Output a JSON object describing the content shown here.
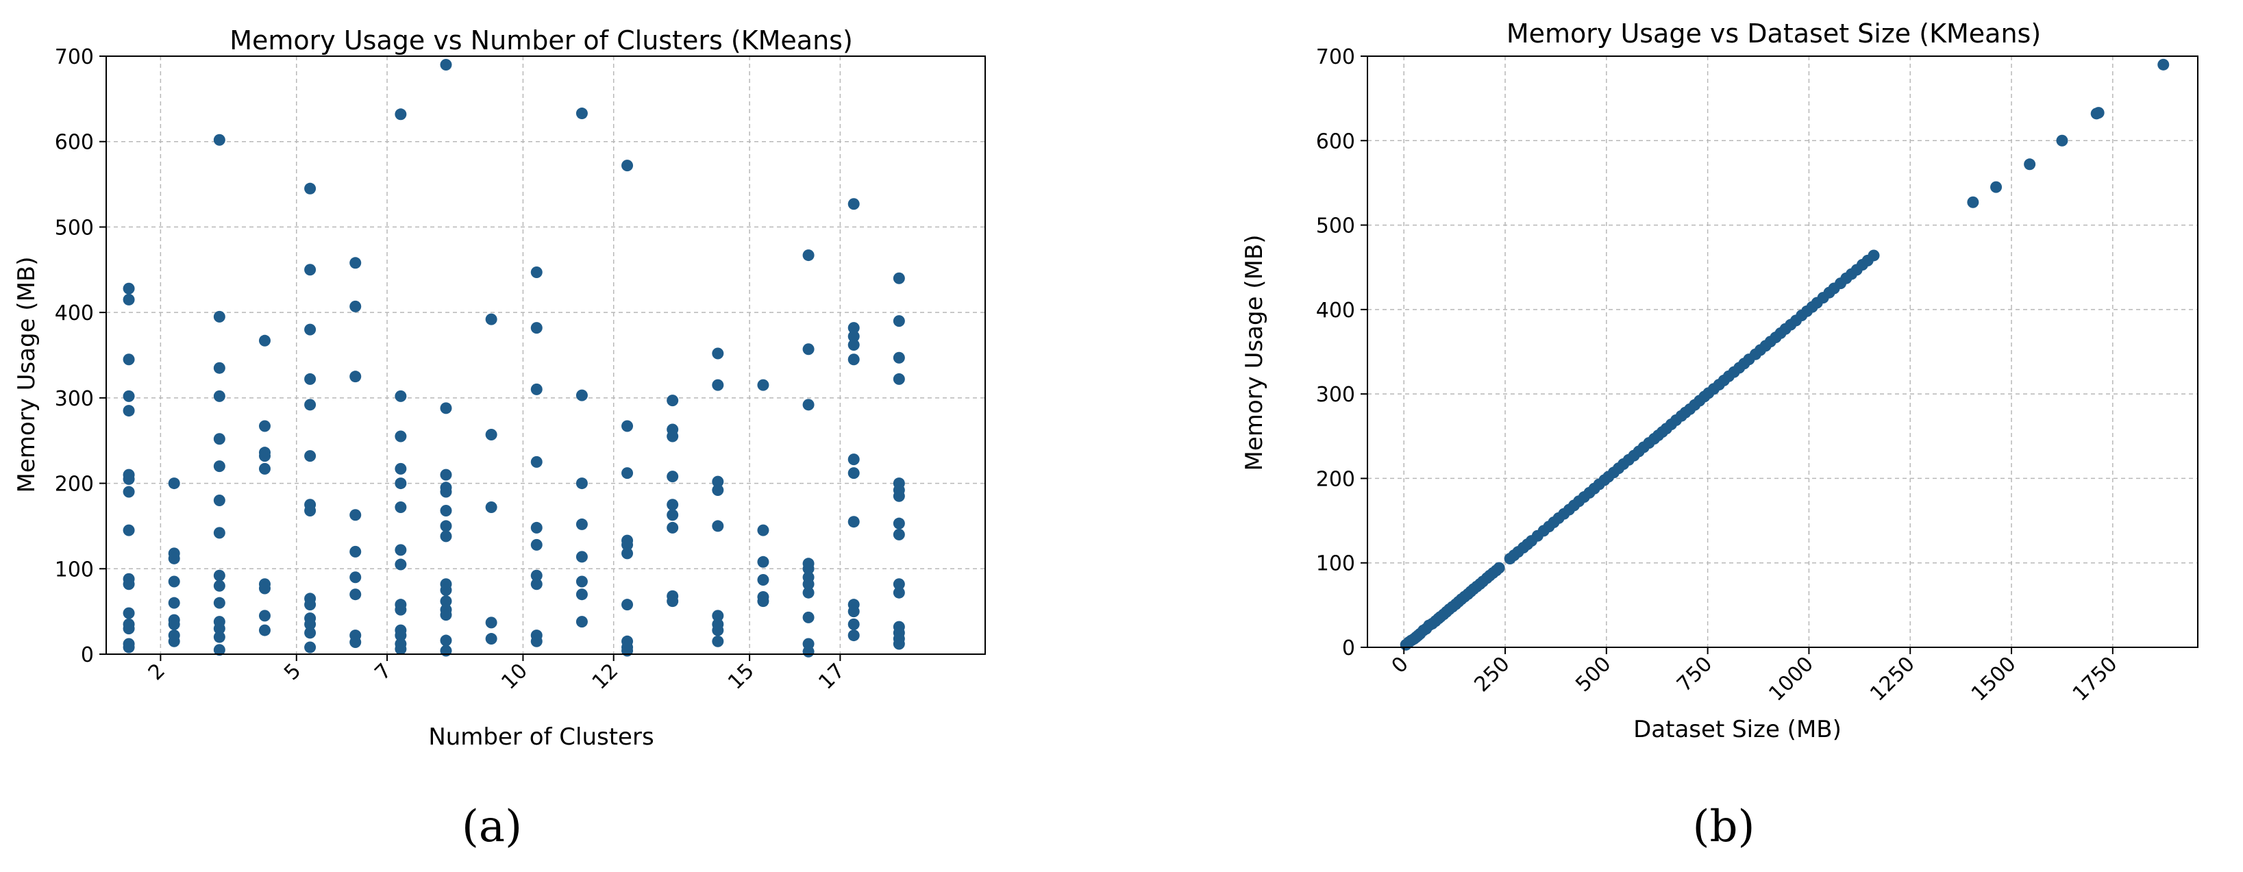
{
  "chart_data": [
    {
      "type": "scatter",
      "title": "Memory Usage vs Number of Clusters (KMeans)",
      "xlabel": "Number of Clusters",
      "ylabel": "Memory Usage (MB)",
      "xlim": [
        0.8,
        20.2
      ],
      "ylim": [
        0,
        700
      ],
      "x_ticks": [
        2,
        5,
        7,
        10,
        12,
        15,
        17
      ],
      "x_tick_labels": [
        "2",
        "5",
        "7",
        "10",
        "12",
        "15",
        "17"
      ],
      "y_ticks": [
        0,
        100,
        200,
        300,
        400,
        500,
        600,
        700
      ],
      "y_tick_labels": [
        "0",
        "100",
        "200",
        "300",
        "400",
        "500",
        "600",
        "700"
      ],
      "x_tick_rotation": 45,
      "grid": true,
      "legend": "none",
      "marker_color": "#1f5c8b",
      "points": [
        [
          1.3,
          428
        ],
        [
          1.3,
          415
        ],
        [
          1.3,
          345
        ],
        [
          1.3,
          302
        ],
        [
          1.3,
          285
        ],
        [
          1.3,
          210
        ],
        [
          1.3,
          205
        ],
        [
          1.3,
          190
        ],
        [
          1.3,
          145
        ],
        [
          1.3,
          88
        ],
        [
          1.3,
          82
        ],
        [
          1.3,
          48
        ],
        [
          1.3,
          35
        ],
        [
          1.3,
          30
        ],
        [
          1.3,
          12
        ],
        [
          1.3,
          8
        ],
        [
          2.3,
          200
        ],
        [
          2.3,
          118
        ],
        [
          2.3,
          112
        ],
        [
          2.3,
          85
        ],
        [
          2.3,
          60
        ],
        [
          2.3,
          40
        ],
        [
          2.3,
          35
        ],
        [
          2.3,
          22
        ],
        [
          2.3,
          15
        ],
        [
          3.3,
          602
        ],
        [
          3.3,
          395
        ],
        [
          3.3,
          335
        ],
        [
          3.3,
          302
        ],
        [
          3.3,
          252
        ],
        [
          3.3,
          220
        ],
        [
          3.3,
          180
        ],
        [
          3.3,
          142
        ],
        [
          3.3,
          92
        ],
        [
          3.3,
          80
        ],
        [
          3.3,
          60
        ],
        [
          3.3,
          38
        ],
        [
          3.3,
          30
        ],
        [
          3.3,
          20
        ],
        [
          3.3,
          5
        ],
        [
          4.3,
          367
        ],
        [
          4.3,
          267
        ],
        [
          4.3,
          236
        ],
        [
          4.3,
          232
        ],
        [
          4.3,
          217
        ],
        [
          4.3,
          82
        ],
        [
          4.3,
          77
        ],
        [
          4.3,
          45
        ],
        [
          4.3,
          28
        ],
        [
          5.3,
          545
        ],
        [
          5.3,
          450
        ],
        [
          5.3,
          380
        ],
        [
          5.3,
          322
        ],
        [
          5.3,
          292
        ],
        [
          5.3,
          232
        ],
        [
          5.3,
          175
        ],
        [
          5.3,
          168
        ],
        [
          5.3,
          65
        ],
        [
          5.3,
          58
        ],
        [
          5.3,
          42
        ],
        [
          5.3,
          35
        ],
        [
          5.3,
          25
        ],
        [
          5.3,
          8
        ],
        [
          6.3,
          458
        ],
        [
          6.3,
          407
        ],
        [
          6.3,
          325
        ],
        [
          6.3,
          163
        ],
        [
          6.3,
          120
        ],
        [
          6.3,
          90
        ],
        [
          6.3,
          70
        ],
        [
          6.3,
          22
        ],
        [
          6.3,
          14
        ],
        [
          7.3,
          632
        ],
        [
          7.3,
          302
        ],
        [
          7.3,
          255
        ],
        [
          7.3,
          217
        ],
        [
          7.3,
          200
        ],
        [
          7.3,
          172
        ],
        [
          7.3,
          122
        ],
        [
          7.3,
          105
        ],
        [
          7.3,
          58
        ],
        [
          7.3,
          52
        ],
        [
          7.3,
          28
        ],
        [
          7.3,
          22
        ],
        [
          7.3,
          12
        ],
        [
          7.3,
          6
        ],
        [
          8.3,
          690
        ],
        [
          8.3,
          288
        ],
        [
          8.3,
          210
        ],
        [
          8.3,
          195
        ],
        [
          8.3,
          190
        ],
        [
          8.3,
          168
        ],
        [
          8.3,
          150
        ],
        [
          8.3,
          138
        ],
        [
          8.3,
          82
        ],
        [
          8.3,
          75
        ],
        [
          8.3,
          62
        ],
        [
          8.3,
          52
        ],
        [
          8.3,
          46
        ],
        [
          8.3,
          16
        ],
        [
          8.3,
          4
        ],
        [
          9.3,
          392
        ],
        [
          9.3,
          257
        ],
        [
          9.3,
          172
        ],
        [
          9.3,
          37
        ],
        [
          9.3,
          18
        ],
        [
          10.3,
          447
        ],
        [
          10.3,
          382
        ],
        [
          10.3,
          310
        ],
        [
          10.3,
          225
        ],
        [
          10.3,
          148
        ],
        [
          10.3,
          128
        ],
        [
          10.3,
          92
        ],
        [
          10.3,
          82
        ],
        [
          10.3,
          22
        ],
        [
          10.3,
          15
        ],
        [
          11.3,
          633
        ],
        [
          11.3,
          303
        ],
        [
          11.3,
          200
        ],
        [
          11.3,
          152
        ],
        [
          11.3,
          114
        ],
        [
          11.3,
          85
        ],
        [
          11.3,
          70
        ],
        [
          11.3,
          38
        ],
        [
          12.3,
          572
        ],
        [
          12.3,
          267
        ],
        [
          12.3,
          212
        ],
        [
          12.3,
          133
        ],
        [
          12.3,
          128
        ],
        [
          12.3,
          118
        ],
        [
          12.3,
          58
        ],
        [
          12.3,
          15
        ],
        [
          12.3,
          8
        ],
        [
          12.3,
          4
        ],
        [
          13.3,
          297
        ],
        [
          13.3,
          263
        ],
        [
          13.3,
          255
        ],
        [
          13.3,
          208
        ],
        [
          13.3,
          175
        ],
        [
          13.3,
          163
        ],
        [
          13.3,
          148
        ],
        [
          13.3,
          68
        ],
        [
          13.3,
          62
        ],
        [
          14.3,
          352
        ],
        [
          14.3,
          315
        ],
        [
          14.3,
          202
        ],
        [
          14.3,
          192
        ],
        [
          14.3,
          150
        ],
        [
          14.3,
          45
        ],
        [
          14.3,
          35
        ],
        [
          14.3,
          28
        ],
        [
          14.3,
          15
        ],
        [
          15.3,
          315
        ],
        [
          15.3,
          145
        ],
        [
          15.3,
          108
        ],
        [
          15.3,
          87
        ],
        [
          15.3,
          67
        ],
        [
          15.3,
          62
        ],
        [
          16.3,
          467
        ],
        [
          16.3,
          357
        ],
        [
          16.3,
          292
        ],
        [
          16.3,
          106
        ],
        [
          16.3,
          100
        ],
        [
          16.3,
          90
        ],
        [
          16.3,
          82
        ],
        [
          16.3,
          72
        ],
        [
          16.3,
          43
        ],
        [
          16.3,
          12
        ],
        [
          16.3,
          3
        ],
        [
          17.3,
          527
        ],
        [
          17.3,
          382
        ],
        [
          17.3,
          372
        ],
        [
          17.3,
          362
        ],
        [
          17.3,
          345
        ],
        [
          17.3,
          228
        ],
        [
          17.3,
          212
        ],
        [
          17.3,
          155
        ],
        [
          17.3,
          58
        ],
        [
          17.3,
          50
        ],
        [
          17.3,
          35
        ],
        [
          17.3,
          22
        ],
        [
          18.3,
          440
        ],
        [
          18.3,
          390
        ],
        [
          18.3,
          347
        ],
        [
          18.3,
          322
        ],
        [
          18.3,
          200
        ],
        [
          18.3,
          192
        ],
        [
          18.3,
          185
        ],
        [
          18.3,
          153
        ],
        [
          18.3,
          140
        ],
        [
          18.3,
          82
        ],
        [
          18.3,
          72
        ],
        [
          18.3,
          32
        ],
        [
          18.3,
          25
        ],
        [
          18.3,
          18
        ],
        [
          18.3,
          12
        ]
      ]
    },
    {
      "type": "scatter",
      "title": "Memory Usage vs Dataset Size (KMeans)",
      "xlabel": "Dataset Size (MB)",
      "ylabel": "Memory Usage (MB)",
      "xlim": [
        -90,
        1960
      ],
      "ylim": [
        0,
        700
      ],
      "x_ticks": [
        0,
        250,
        500,
        750,
        1000,
        1250,
        1500,
        1750
      ],
      "x_tick_labels": [
        "0",
        "250",
        "500",
        "750",
        "1000",
        "1250",
        "1500",
        "1750"
      ],
      "y_ticks": [
        0,
        100,
        200,
        300,
        400,
        500,
        600,
        700
      ],
      "y_tick_labels": [
        "0",
        "100",
        "200",
        "300",
        "400",
        "500",
        "600",
        "700"
      ],
      "x_tick_rotation": 45,
      "grid": true,
      "legend": "none",
      "marker_color": "#1f5c8b",
      "points": [
        [
          5,
          3
        ],
        [
          12,
          6
        ],
        [
          18,
          8
        ],
        [
          25,
          10
        ],
        [
          30,
          12
        ],
        [
          35,
          14
        ],
        [
          40,
          16
        ],
        [
          48,
          20
        ],
        [
          55,
          22
        ],
        [
          62,
          26
        ],
        [
          70,
          28
        ],
        [
          78,
          31
        ],
        [
          85,
          34
        ],
        [
          90,
          36
        ],
        [
          98,
          39
        ],
        [
          105,
          42
        ],
        [
          112,
          45
        ],
        [
          120,
          48
        ],
        [
          128,
          51
        ],
        [
          135,
          54
        ],
        [
          142,
          57
        ],
        [
          150,
          60
        ],
        [
          158,
          63
        ],
        [
          165,
          66
        ],
        [
          172,
          69
        ],
        [
          180,
          72
        ],
        [
          188,
          75
        ],
        [
          195,
          78
        ],
        [
          205,
          82
        ],
        [
          212,
          85
        ],
        [
          220,
          88
        ],
        [
          228,
          91
        ],
        [
          235,
          94
        ],
        [
          262,
          105
        ],
        [
          272,
          109
        ],
        [
          282,
          113
        ],
        [
          295,
          118
        ],
        [
          305,
          122
        ],
        [
          315,
          126
        ],
        [
          330,
          132
        ],
        [
          345,
          138
        ],
        [
          358,
          143
        ],
        [
          370,
          148
        ],
        [
          382,
          153
        ],
        [
          395,
          158
        ],
        [
          408,
          163
        ],
        [
          420,
          168
        ],
        [
          432,
          173
        ],
        [
          445,
          178
        ],
        [
          458,
          183
        ],
        [
          470,
          188
        ],
        [
          482,
          193
        ],
        [
          495,
          198
        ],
        [
          505,
          202
        ],
        [
          518,
          207
        ],
        [
          530,
          212
        ],
        [
          542,
          217
        ],
        [
          555,
          222
        ],
        [
          568,
          227
        ],
        [
          580,
          232
        ],
        [
          592,
          237
        ],
        [
          605,
          242
        ],
        [
          618,
          247
        ],
        [
          628,
          251
        ],
        [
          638,
          255
        ],
        [
          648,
          259
        ],
        [
          660,
          264
        ],
        [
          672,
          269
        ],
        [
          685,
          274
        ],
        [
          695,
          278
        ],
        [
          706,
          282
        ],
        [
          718,
          287
        ],
        [
          730,
          292
        ],
        [
          742,
          297
        ],
        [
          752,
          301
        ],
        [
          765,
          306
        ],
        [
          778,
          311
        ],
        [
          790,
          316
        ],
        [
          802,
          321
        ],
        [
          815,
          326
        ],
        [
          828,
          331
        ],
        [
          840,
          336
        ],
        [
          852,
          341
        ],
        [
          868,
          347
        ],
        [
          880,
          352
        ],
        [
          893,
          357
        ],
        [
          905,
          362
        ],
        [
          918,
          367
        ],
        [
          930,
          372
        ],
        [
          942,
          377
        ],
        [
          955,
          382
        ],
        [
          968,
          387
        ],
        [
          982,
          393
        ],
        [
          995,
          398
        ],
        [
          1008,
          403
        ],
        [
          1020,
          408
        ],
        [
          1035,
          414
        ],
        [
          1050,
          420
        ],
        [
          1062,
          425
        ],
        [
          1078,
          431
        ],
        [
          1092,
          437
        ],
        [
          1105,
          442
        ],
        [
          1118,
          447
        ],
        [
          1132,
          453
        ],
        [
          1145,
          458
        ],
        [
          1160,
          464
        ],
        [
          1405,
          527
        ],
        [
          1462,
          545
        ],
        [
          1545,
          572
        ],
        [
          1625,
          600
        ],
        [
          1710,
          632
        ],
        [
          1715,
          633
        ],
        [
          1875,
          690
        ]
      ]
    }
  ],
  "captions": {
    "a": "(a)",
    "b": "(b)"
  }
}
